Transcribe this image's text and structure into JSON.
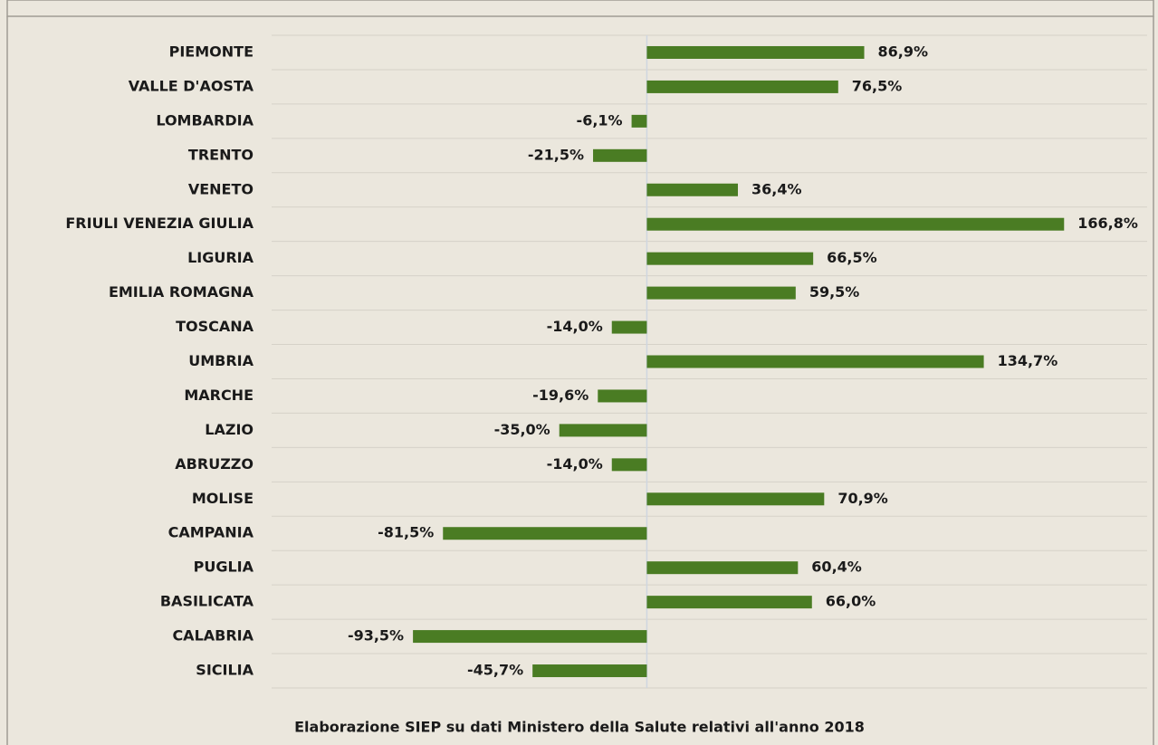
{
  "chart_data": {
    "type": "barh",
    "categories": [
      "PIEMONTE",
      "VALLE D'AOSTA",
      "LOMBARDIA",
      "TRENTO",
      "VENETO",
      "FRIULI VENEZIA GIULIA",
      "LIGURIA",
      "EMILIA ROMAGNA",
      "TOSCANA",
      "UMBRIA",
      "MARCHE",
      "LAZIO",
      "ABRUZZO",
      "MOLISE",
      "CAMPANIA",
      "PUGLIA",
      "BASILICATA",
      "CALABRIA",
      "SICILIA"
    ],
    "values": [
      86.9,
      76.5,
      -6.1,
      -21.5,
      36.4,
      166.8,
      66.5,
      59.5,
      -14.0,
      134.7,
      -19.6,
      -35.0,
      -14.0,
      70.9,
      -81.5,
      60.4,
      66.0,
      -93.5,
      -45.7
    ],
    "value_labels": [
      "86,9%",
      "76,5%",
      "-6,1%",
      "-21,5%",
      "36,4%",
      "166,8%",
      "66,5%",
      "59,5%",
      "-14,0%",
      "134,7%",
      "-19,6%",
      "-35,0%",
      "-14,0%",
      "70,9%",
      "-81,5%",
      "60,4%",
      "66,0%",
      "-93,5%",
      "-45,7%"
    ],
    "color": "#4a7c23",
    "xlim": [
      -150,
      200
    ],
    "source": "Elaborazione SIEP su dati Ministero della Salute relativi all'anno 2018"
  }
}
